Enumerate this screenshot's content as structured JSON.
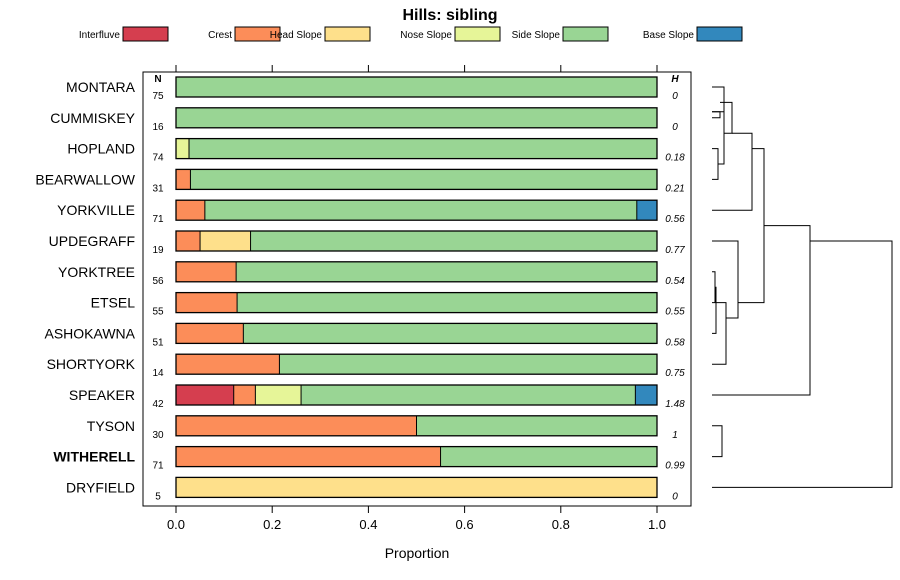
{
  "chart_data": {
    "type": "bar",
    "orientation": "horizontal-stacked",
    "title": "Hills: sibling",
    "xlabel": "Proportion",
    "ylabel": "",
    "xlim": [
      0,
      1
    ],
    "x_ticks": [
      "0.0",
      "0.2",
      "0.4",
      "0.6",
      "0.8",
      "1.0"
    ],
    "n_header": "N",
    "h_header": "H",
    "legend": [
      {
        "name": "Interfluve",
        "color": "#d53e4f"
      },
      {
        "name": "Crest",
        "color": "#fc8d59"
      },
      {
        "name": "Head Slope",
        "color": "#fee08b"
      },
      {
        "name": "Nose Slope",
        "color": "#e6f598"
      },
      {
        "name": "Side Slope",
        "color": "#99d594"
      },
      {
        "name": "Base Slope",
        "color": "#3288bd"
      }
    ],
    "categories": [
      "MONTARA",
      "CUMMISKEY",
      "HOPLAND",
      "BEARWALLOW",
      "YORKVILLE",
      "UPDEGRAFF",
      "YORKTREE",
      "ETSEL",
      "ASHOKAWNA",
      "SHORTYORK",
      "SPEAKER",
      "TYSON",
      "WITHERELL",
      "DRYFIELD"
    ],
    "highlighted": "WITHERELL",
    "n": [
      "75",
      "16",
      "74",
      "31",
      "71",
      "19",
      "56",
      "55",
      "51",
      "14",
      "42",
      "30",
      "71",
      "5"
    ],
    "h": [
      "0",
      "0",
      "0.18",
      "0.21",
      "0.56",
      "0.77",
      "0.54",
      "0.55",
      "0.58",
      "0.75",
      "1.48",
      "1",
      "0.99",
      "0"
    ],
    "series": [
      {
        "name": "Interfluve",
        "values": [
          0,
          0,
          0,
          0,
          0,
          0,
          0,
          0,
          0,
          0,
          0.12,
          0,
          0,
          0
        ]
      },
      {
        "name": "Crest",
        "values": [
          0,
          0,
          0,
          0.03,
          0.06,
          0.05,
          0.125,
          0.127,
          0.14,
          0.215,
          0.045,
          0.5,
          0.55,
          0
        ]
      },
      {
        "name": "Head Slope",
        "values": [
          0,
          0,
          0,
          0,
          0,
          0.105,
          0,
          0,
          0,
          0,
          0,
          0,
          0,
          1.0
        ]
      },
      {
        "name": "Nose Slope",
        "values": [
          0,
          0,
          0.027,
          0,
          0,
          0,
          0,
          0,
          0,
          0,
          0.095,
          0,
          0,
          0
        ]
      },
      {
        "name": "Side Slope",
        "values": [
          1.0,
          1.0,
          0.973,
          0.97,
          0.898,
          0.845,
          0.875,
          0.873,
          0.86,
          0.785,
          0.695,
          0.5,
          0.45,
          0
        ]
      },
      {
        "name": "Base Slope",
        "values": [
          0,
          0,
          0,
          0,
          0.042,
          0,
          0,
          0,
          0,
          0,
          0.045,
          0,
          0,
          0
        ]
      }
    ]
  }
}
